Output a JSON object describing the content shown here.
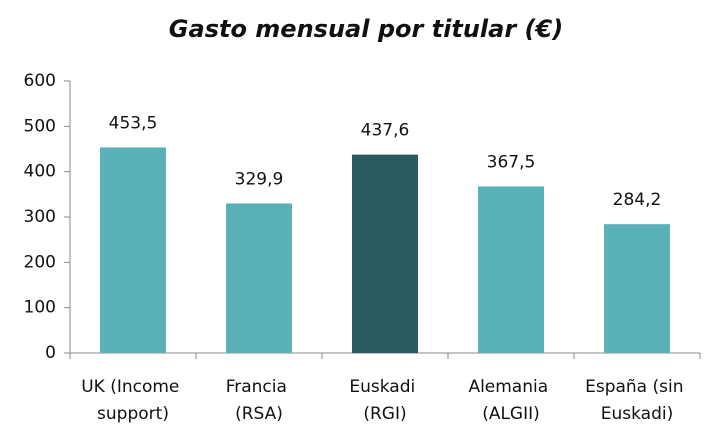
{
  "chart_data": {
    "type": "bar",
    "title": "Gasto mensual por titular (€)",
    "categories": [
      "UK (Income support)",
      "Francia (RSA)",
      "Euskadi (RGI)",
      "Alemania (ALGII)",
      "España (sin Euskadi)"
    ],
    "values": [
      453.5,
      329.9,
      437.6,
      367.5,
      284.2
    ],
    "value_labels": [
      "453,5",
      "329,9",
      "437,6",
      "367,5",
      "284,2"
    ],
    "colors": [
      "#5bb1b9",
      "#5bb1b9",
      "#2a5b60",
      "#5bb1b9",
      "#5bb1b9"
    ],
    "ylim": [
      0,
      600
    ],
    "yticks": [
      0,
      100,
      200,
      300,
      400,
      500,
      600
    ],
    "grid": false
  }
}
